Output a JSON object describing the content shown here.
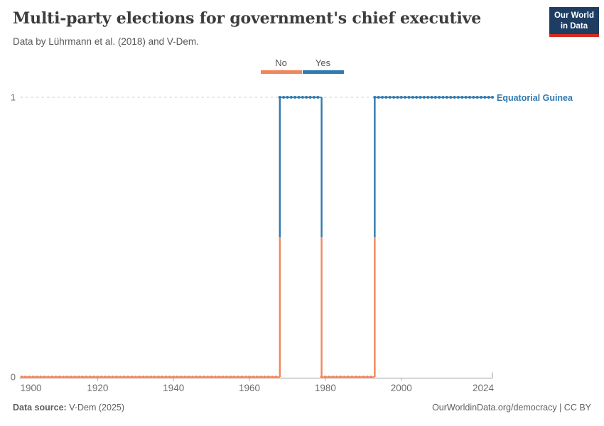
{
  "header": {
    "title": "Multi-party elections for government's chief executive",
    "subtitle": "Data by Lührmann et al. (2018) and V-Dem.",
    "logo": {
      "line1": "Our World",
      "line2": "in Data",
      "bg_color": "#1d3d63",
      "bar_color": "#d42b21"
    }
  },
  "legend": {
    "items": [
      {
        "label": "No",
        "color": "#F0875C"
      },
      {
        "label": "Yes",
        "color": "#3179B0"
      }
    ]
  },
  "chart_data": {
    "type": "line",
    "step": true,
    "title": "Multi-party elections for government's chief executive",
    "entity_label": "Equatorial Guinea",
    "xlabel": "",
    "ylabel": "",
    "xlim": [
      1900,
      2024
    ],
    "ylim": [
      0,
      1
    ],
    "x_ticks": [
      1900,
      1920,
      1940,
      1960,
      1980,
      2000,
      2024
    ],
    "y_ticks": [
      0,
      1
    ],
    "grid": "dashed horizontal gridline at y=1",
    "legend_position": "top-center",
    "value_labels": {
      "0": "No",
      "1": "Yes"
    },
    "value_colors": {
      "0": "#F0875C",
      "1": "#3179B0"
    },
    "series": [
      {
        "name": "Equatorial Guinea",
        "segments": [
          {
            "from": 1900,
            "to": 1967,
            "value": 0,
            "label": "No"
          },
          {
            "from": 1968,
            "to": 1978,
            "value": 1,
            "label": "Yes"
          },
          {
            "from": 1979,
            "to": 1992,
            "value": 0,
            "label": "No"
          },
          {
            "from": 1993,
            "to": 2024,
            "value": 1,
            "label": "Yes"
          }
        ]
      }
    ]
  },
  "footer": {
    "source_label": "Data source:",
    "source_value": " V-Dem (2025)",
    "credit": "OurWorldinData.org/democracy | CC BY"
  }
}
